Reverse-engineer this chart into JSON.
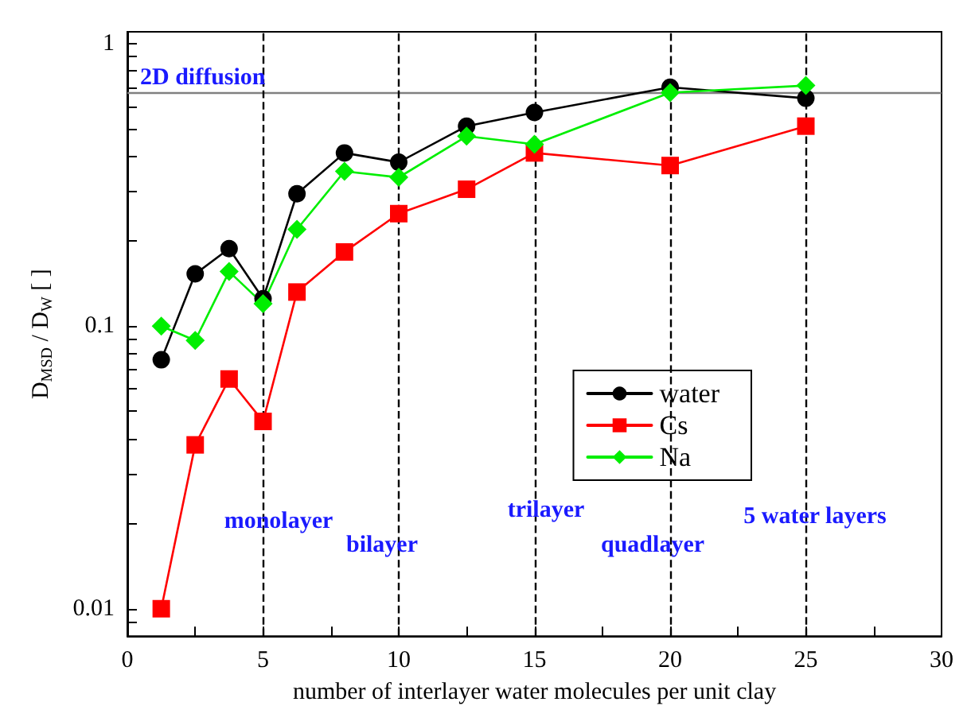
{
  "chart_data": {
    "type": "line",
    "xlabel": "number of interlayer water molecules per unit clay",
    "ylabel": "D$_{MSD}$ / D$_{W}$ [ ]",
    "log": "y",
    "grid": false,
    "legend": "right",
    "x": [
      1.25,
      2.5,
      3.75,
      5,
      6.25,
      8,
      10,
      12.5,
      15,
      20,
      25
    ],
    "series": [
      {
        "name": "water",
        "color": "#000000",
        "marker": "circle",
        "values": [
          0.076,
          0.153,
          0.188,
          0.125,
          0.294,
          0.41,
          0.38,
          0.51,
          0.57,
          0.7,
          0.64
        ]
      },
      {
        "name": "Cs",
        "color": "#ff0000",
        "marker": "square",
        "values": [
          0.01,
          0.038,
          0.065,
          0.046,
          0.132,
          0.183,
          0.25,
          0.305,
          0.41,
          0.37,
          0.51
        ]
      },
      {
        "name": "Na",
        "color": "#00ee00",
        "marker": "diamond",
        "values": [
          0.1,
          0.089,
          0.156,
          0.12,
          0.22,
          0.353,
          0.336,
          0.47,
          0.44,
          0.67,
          0.71
        ]
      }
    ],
    "xlim": [
      0,
      30
    ],
    "xticks": [
      0,
      {
        "value": 2.5,
        "label": null
      },
      5,
      {
        "value": 7.5,
        "label": null
      },
      10,
      {
        "value": 12.5,
        "label": null
      },
      15,
      {
        "value": 17.5,
        "label": null
      },
      20,
      {
        "value": 22.5,
        "label": null
      },
      25,
      {
        "value": 27.5,
        "label": null
      },
      30
    ],
    "ylim": [
      0.008,
      1.1
    ],
    "yticks": [
      {
        "value": 0.009,
        "label": null
      },
      0.01,
      {
        "value": 0.02,
        "label": null
      },
      {
        "value": 0.03,
        "label": null
      },
      {
        "value": 0.04,
        "label": null
      },
      {
        "value": 0.05,
        "label": null
      },
      {
        "value": 0.06,
        "label": null
      },
      {
        "value": 0.07,
        "label": null
      },
      {
        "value": 0.08,
        "label": null
      },
      {
        "value": 0.09,
        "label": null
      },
      0.1,
      {
        "value": 0.2,
        "label": null
      },
      {
        "value": 0.3,
        "label": null
      },
      {
        "value": 0.4,
        "label": null
      },
      {
        "value": 0.5,
        "label": null
      },
      {
        "value": 0.6,
        "label": null
      },
      {
        "value": 0.7,
        "label": null
      },
      {
        "value": 0.8,
        "label": null
      },
      {
        "value": 0.9,
        "label": null
      },
      1
    ],
    "ref_lines": [
      {
        "axis": "y",
        "value": 0.67,
        "label": "2D diffusion",
        "color": "#808080",
        "line_style": "solid"
      },
      {
        "axis": "x",
        "value": 5,
        "label": null,
        "color": "#000000",
        "line_style": "dashed"
      },
      {
        "axis": "x",
        "value": 10,
        "label": null,
        "color": "#000000",
        "line_style": "dashed"
      },
      {
        "axis": "x",
        "value": 15,
        "label": null,
        "color": "#000000",
        "line_style": "dashed"
      },
      {
        "axis": "x",
        "value": 20,
        "label": null,
        "color": "#000000",
        "line_style": "dashed"
      },
      {
        "axis": "x",
        "value": 25,
        "label": null,
        "color": "#000000",
        "line_style": "dashed"
      }
    ],
    "annotations": [
      "monolayer",
      "bilayer",
      "trilayer",
      "quadlayer",
      "5 water layers"
    ]
  }
}
